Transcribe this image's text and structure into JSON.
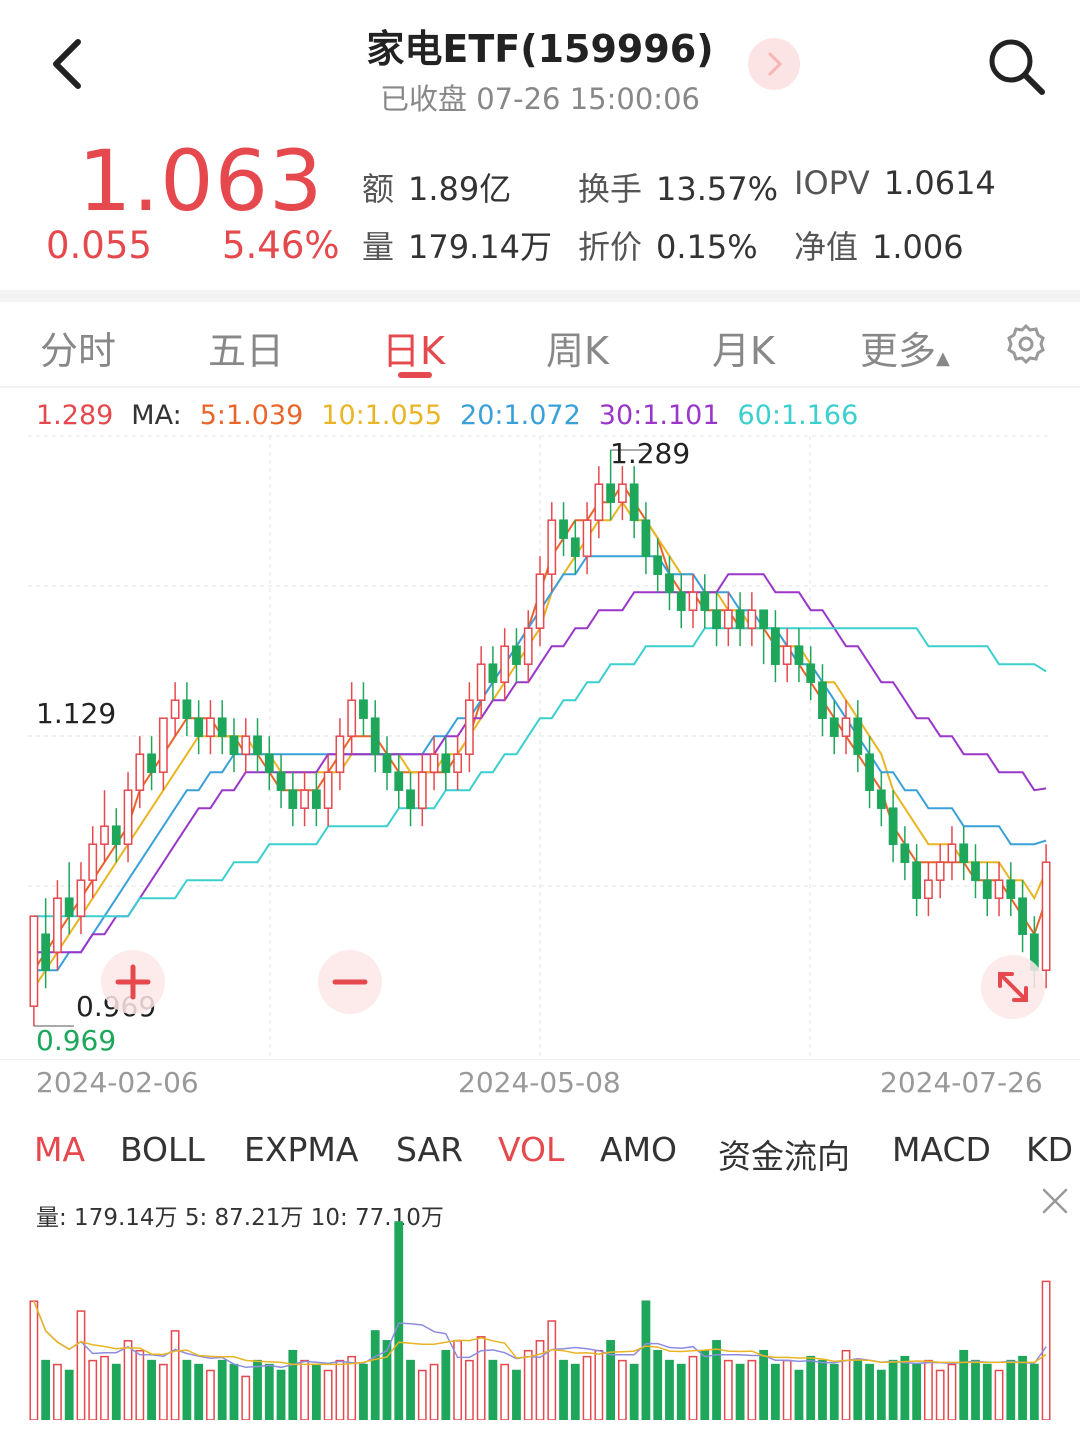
{
  "header": {
    "title": "家电ETF(159996)",
    "status": "已收盘 07-26 15:00:06",
    "back_icon": "chevron-left-icon",
    "next_icon": "chevron-right-icon",
    "search_icon": "search-icon"
  },
  "quote": {
    "price": "1.063",
    "change": "0.055",
    "change_pct": "5.46%",
    "stats": [
      {
        "label": "额",
        "value": "1.89亿"
      },
      {
        "label": "换手",
        "value": "13.57%"
      },
      {
        "label": "IOPV",
        "value": "1.0614"
      },
      {
        "label": "量",
        "value": "179.14万"
      },
      {
        "label": "折价",
        "value": "0.15%"
      },
      {
        "label": "净值",
        "value": "1.006"
      }
    ]
  },
  "tabs": [
    {
      "label": "分时",
      "active": false
    },
    {
      "label": "五日",
      "active": false
    },
    {
      "label": "日K",
      "active": true
    },
    {
      "label": "周K",
      "active": false
    },
    {
      "label": "月K",
      "active": false
    },
    {
      "label": "更多",
      "active": false
    }
  ],
  "settings_icon": "gear-icon",
  "ma_legend": {
    "price": "1.289",
    "ma_label": "MA:",
    "items": [
      {
        "text": "5:1.039",
        "color": "#e8662a"
      },
      {
        "text": "10:1.055",
        "color": "#e9b524"
      },
      {
        "text": "20:1.072",
        "color": "#3aa0da"
      },
      {
        "text": "30:1.101",
        "color": "#9a37c9"
      },
      {
        "text": "60:1.166",
        "color": "#3ccfd0"
      }
    ]
  },
  "chart_labels": {
    "high": "1.289",
    "mid": "1.129",
    "low_mark": "0.969",
    "low_axis": "0.969"
  },
  "chart_data": {
    "type": "candlestick",
    "ylim": [
      0.969,
      1.289
    ],
    "x_ticks": [
      "2024-02-06",
      "2024-05-08",
      "2024-07-26"
    ],
    "colors": {
      "up": "#e5484d",
      "down": "#1ea65a"
    },
    "candles": [
      [
        0.98,
        1.03,
        0.969,
        1.03
      ],
      [
        1.02,
        1.0,
        0.99,
        1.04
      ],
      [
        1.01,
        1.04,
        1.0,
        1.05
      ],
      [
        1.04,
        1.03,
        1.02,
        1.06
      ],
      [
        1.03,
        1.05,
        1.02,
        1.06
      ],
      [
        1.05,
        1.07,
        1.04,
        1.08
      ],
      [
        1.07,
        1.08,
        1.06,
        1.1
      ],
      [
        1.08,
        1.07,
        1.06,
        1.09
      ],
      [
        1.07,
        1.1,
        1.06,
        1.11
      ],
      [
        1.1,
        1.12,
        1.09,
        1.13
      ],
      [
        1.12,
        1.11,
        1.1,
        1.13
      ],
      [
        1.11,
        1.14,
        1.1,
        1.14
      ],
      [
        1.14,
        1.15,
        1.13,
        1.16
      ],
      [
        1.15,
        1.14,
        1.13,
        1.16
      ],
      [
        1.14,
        1.13,
        1.12,
        1.15
      ],
      [
        1.13,
        1.14,
        1.12,
        1.15
      ],
      [
        1.14,
        1.13,
        1.12,
        1.15
      ],
      [
        1.13,
        1.12,
        1.11,
        1.14
      ],
      [
        1.12,
        1.13,
        1.11,
        1.14
      ],
      [
        1.13,
        1.12,
        1.11,
        1.14
      ],
      [
        1.12,
        1.11,
        1.1,
        1.13
      ],
      [
        1.11,
        1.1,
        1.09,
        1.12
      ],
      [
        1.1,
        1.09,
        1.08,
        1.11
      ],
      [
        1.09,
        1.1,
        1.08,
        1.11
      ],
      [
        1.1,
        1.09,
        1.08,
        1.11
      ],
      [
        1.09,
        1.11,
        1.08,
        1.12
      ],
      [
        1.11,
        1.13,
        1.1,
        1.14
      ],
      [
        1.13,
        1.15,
        1.12,
        1.16
      ],
      [
        1.15,
        1.14,
        1.13,
        1.16
      ],
      [
        1.14,
        1.12,
        1.11,
        1.15
      ],
      [
        1.12,
        1.11,
        1.1,
        1.13
      ],
      [
        1.11,
        1.1,
        1.09,
        1.12
      ],
      [
        1.1,
        1.09,
        1.08,
        1.11
      ],
      [
        1.09,
        1.11,
        1.08,
        1.12
      ],
      [
        1.11,
        1.12,
        1.1,
        1.13
      ],
      [
        1.12,
        1.11,
        1.1,
        1.13
      ],
      [
        1.11,
        1.12,
        1.1,
        1.13
      ],
      [
        1.12,
        1.15,
        1.11,
        1.16
      ],
      [
        1.15,
        1.17,
        1.14,
        1.18
      ],
      [
        1.17,
        1.16,
        1.15,
        1.18
      ],
      [
        1.16,
        1.18,
        1.15,
        1.19
      ],
      [
        1.18,
        1.17,
        1.16,
        1.19
      ],
      [
        1.17,
        1.19,
        1.16,
        1.2
      ],
      [
        1.19,
        1.22,
        1.18,
        1.23
      ],
      [
        1.22,
        1.25,
        1.21,
        1.26
      ],
      [
        1.25,
        1.24,
        1.23,
        1.26
      ],
      [
        1.24,
        1.23,
        1.22,
        1.25
      ],
      [
        1.23,
        1.25,
        1.22,
        1.26
      ],
      [
        1.25,
        1.27,
        1.24,
        1.28
      ],
      [
        1.27,
        1.26,
        1.25,
        1.289
      ],
      [
        1.26,
        1.27,
        1.25,
        1.28
      ],
      [
        1.27,
        1.25,
        1.24,
        1.28
      ],
      [
        1.25,
        1.23,
        1.22,
        1.26
      ],
      [
        1.23,
        1.22,
        1.21,
        1.24
      ],
      [
        1.22,
        1.21,
        1.2,
        1.23
      ],
      [
        1.21,
        1.2,
        1.19,
        1.22
      ],
      [
        1.2,
        1.21,
        1.19,
        1.22
      ],
      [
        1.21,
        1.2,
        1.19,
        1.22
      ],
      [
        1.2,
        1.19,
        1.18,
        1.21
      ],
      [
        1.19,
        1.2,
        1.18,
        1.21
      ],
      [
        1.2,
        1.19,
        1.18,
        1.21
      ],
      [
        1.19,
        1.2,
        1.18,
        1.21
      ],
      [
        1.2,
        1.19,
        1.17,
        1.2
      ],
      [
        1.19,
        1.17,
        1.16,
        1.2
      ],
      [
        1.17,
        1.18,
        1.16,
        1.19
      ],
      [
        1.18,
        1.17,
        1.16,
        1.19
      ],
      [
        1.17,
        1.16,
        1.15,
        1.18
      ],
      [
        1.16,
        1.14,
        1.13,
        1.17
      ],
      [
        1.14,
        1.13,
        1.12,
        1.15
      ],
      [
        1.13,
        1.14,
        1.12,
        1.15
      ],
      [
        1.14,
        1.12,
        1.11,
        1.15
      ],
      [
        1.12,
        1.1,
        1.09,
        1.13
      ],
      [
        1.1,
        1.09,
        1.08,
        1.11
      ],
      [
        1.09,
        1.07,
        1.06,
        1.1
      ],
      [
        1.07,
        1.06,
        1.05,
        1.08
      ],
      [
        1.06,
        1.04,
        1.03,
        1.07
      ],
      [
        1.04,
        1.05,
        1.03,
        1.06
      ],
      [
        1.05,
        1.06,
        1.04,
        1.07
      ],
      [
        1.06,
        1.07,
        1.05,
        1.08
      ],
      [
        1.07,
        1.06,
        1.05,
        1.08
      ],
      [
        1.06,
        1.05,
        1.04,
        1.07
      ],
      [
        1.05,
        1.04,
        1.03,
        1.06
      ],
      [
        1.04,
        1.05,
        1.03,
        1.06
      ],
      [
        1.05,
        1.04,
        1.03,
        1.06
      ],
      [
        1.04,
        1.02,
        1.01,
        1.05
      ],
      [
        1.02,
        1.0,
        0.99,
        1.03
      ],
      [
        1.0,
        1.06,
        0.99,
        1.07
      ]
    ],
    "ma": {
      "ma5": {
        "color": "#e8662a",
        "values": [
          1.0,
          1.01,
          1.02,
          1.03,
          1.04,
          1.05,
          1.06,
          1.07,
          1.08,
          1.1,
          1.11,
          1.12,
          1.13,
          1.14,
          1.14,
          1.14,
          1.13,
          1.13,
          1.12,
          1.12,
          1.11,
          1.1,
          1.1,
          1.1,
          1.1,
          1.11,
          1.12,
          1.13,
          1.13,
          1.13,
          1.12,
          1.11,
          1.11,
          1.11,
          1.11,
          1.11,
          1.12,
          1.13,
          1.15,
          1.16,
          1.17,
          1.18,
          1.19,
          1.21,
          1.23,
          1.24,
          1.25,
          1.25,
          1.26,
          1.26,
          1.27,
          1.26,
          1.25,
          1.24,
          1.22,
          1.21,
          1.21,
          1.2,
          1.2,
          1.2,
          1.19,
          1.19,
          1.19,
          1.18,
          1.18,
          1.17,
          1.16,
          1.15,
          1.14,
          1.13,
          1.12,
          1.11,
          1.1,
          1.08,
          1.07,
          1.06,
          1.06,
          1.06,
          1.06,
          1.06,
          1.05,
          1.05,
          1.05,
          1.04,
          1.03,
          1.02,
          1.039
        ]
      },
      "ma10": {
        "color": "#e9b524",
        "values": [
          0.99,
          1.0,
          1.01,
          1.02,
          1.03,
          1.04,
          1.05,
          1.06,
          1.07,
          1.08,
          1.09,
          1.1,
          1.11,
          1.12,
          1.13,
          1.13,
          1.13,
          1.13,
          1.13,
          1.12,
          1.12,
          1.11,
          1.11,
          1.11,
          1.11,
          1.11,
          1.11,
          1.12,
          1.12,
          1.12,
          1.12,
          1.12,
          1.11,
          1.11,
          1.11,
          1.12,
          1.12,
          1.13,
          1.14,
          1.15,
          1.16,
          1.17,
          1.18,
          1.19,
          1.21,
          1.22,
          1.23,
          1.24,
          1.25,
          1.25,
          1.26,
          1.25,
          1.25,
          1.24,
          1.23,
          1.22,
          1.22,
          1.21,
          1.21,
          1.2,
          1.2,
          1.19,
          1.19,
          1.19,
          1.18,
          1.18,
          1.17,
          1.16,
          1.16,
          1.15,
          1.14,
          1.13,
          1.12,
          1.1,
          1.09,
          1.08,
          1.07,
          1.07,
          1.07,
          1.06,
          1.06,
          1.06,
          1.06,
          1.05,
          1.05,
          1.04,
          1.055
        ]
      },
      "ma20": {
        "color": "#3aa0da",
        "values": [
          1.0,
          1.0,
          1.0,
          1.01,
          1.01,
          1.02,
          1.03,
          1.04,
          1.05,
          1.06,
          1.07,
          1.08,
          1.09,
          1.1,
          1.1,
          1.11,
          1.11,
          1.12,
          1.12,
          1.12,
          1.12,
          1.12,
          1.12,
          1.12,
          1.12,
          1.12,
          1.12,
          1.12,
          1.12,
          1.12,
          1.12,
          1.12,
          1.12,
          1.12,
          1.13,
          1.13,
          1.14,
          1.14,
          1.15,
          1.16,
          1.17,
          1.18,
          1.19,
          1.2,
          1.21,
          1.22,
          1.22,
          1.23,
          1.23,
          1.23,
          1.23,
          1.23,
          1.23,
          1.23,
          1.22,
          1.22,
          1.22,
          1.21,
          1.21,
          1.21,
          1.2,
          1.2,
          1.19,
          1.19,
          1.18,
          1.17,
          1.17,
          1.16,
          1.15,
          1.14,
          1.13,
          1.12,
          1.11,
          1.11,
          1.1,
          1.1,
          1.09,
          1.09,
          1.09,
          1.08,
          1.08,
          1.08,
          1.08,
          1.07,
          1.07,
          1.07,
          1.072
        ]
      },
      "ma30": {
        "color": "#9a37c9",
        "values": [
          1.01,
          1.01,
          1.01,
          1.01,
          1.01,
          1.02,
          1.02,
          1.03,
          1.03,
          1.04,
          1.05,
          1.06,
          1.07,
          1.08,
          1.09,
          1.09,
          1.1,
          1.1,
          1.11,
          1.11,
          1.11,
          1.11,
          1.11,
          1.11,
          1.11,
          1.12,
          1.12,
          1.12,
          1.12,
          1.12,
          1.12,
          1.12,
          1.12,
          1.12,
          1.12,
          1.13,
          1.13,
          1.14,
          1.14,
          1.15,
          1.15,
          1.16,
          1.16,
          1.17,
          1.18,
          1.18,
          1.19,
          1.19,
          1.2,
          1.2,
          1.2,
          1.21,
          1.21,
          1.21,
          1.21,
          1.21,
          1.21,
          1.21,
          1.21,
          1.22,
          1.22,
          1.22,
          1.22,
          1.21,
          1.21,
          1.21,
          1.2,
          1.2,
          1.19,
          1.18,
          1.18,
          1.17,
          1.16,
          1.16,
          1.15,
          1.14,
          1.14,
          1.13,
          1.13,
          1.12,
          1.12,
          1.12,
          1.11,
          1.11,
          1.11,
          1.1,
          1.101
        ]
      },
      "ma60": {
        "color": "#3ccfd0",
        "values": [
          1.03,
          1.03,
          1.03,
          1.03,
          1.03,
          1.03,
          1.03,
          1.03,
          1.03,
          1.04,
          1.04,
          1.04,
          1.04,
          1.05,
          1.05,
          1.05,
          1.05,
          1.06,
          1.06,
          1.06,
          1.07,
          1.07,
          1.07,
          1.07,
          1.07,
          1.08,
          1.08,
          1.08,
          1.08,
          1.08,
          1.08,
          1.09,
          1.09,
          1.09,
          1.09,
          1.1,
          1.1,
          1.1,
          1.11,
          1.11,
          1.12,
          1.12,
          1.13,
          1.14,
          1.14,
          1.15,
          1.15,
          1.16,
          1.16,
          1.17,
          1.17,
          1.17,
          1.18,
          1.18,
          1.18,
          1.18,
          1.18,
          1.19,
          1.19,
          1.19,
          1.19,
          1.19,
          1.19,
          1.19,
          1.19,
          1.19,
          1.19,
          1.19,
          1.19,
          1.19,
          1.19,
          1.19,
          1.19,
          1.19,
          1.19,
          1.19,
          1.18,
          1.18,
          1.18,
          1.18,
          1.18,
          1.18,
          1.17,
          1.17,
          1.17,
          1.17,
          1.166
        ]
      }
    },
    "volume": [
      60,
      30,
      28,
      25,
      55,
      30,
      32,
      28,
      40,
      35,
      30,
      28,
      45,
      30,
      28,
      25,
      30,
      28,
      22,
      30,
      28,
      25,
      35,
      30,
      28,
      25,
      30,
      32,
      28,
      45,
      40,
      100,
      30,
      25,
      28,
      35,
      40,
      30,
      42,
      30,
      28,
      25,
      35,
      40,
      50,
      30,
      28,
      32,
      35,
      40,
      30,
      28,
      60,
      35,
      30,
      28,
      32,
      35,
      40,
      30,
      28,
      30,
      35,
      28,
      30,
      25,
      32,
      30,
      28,
      35,
      30,
      28,
      25,
      30,
      32,
      28,
      30,
      25,
      28,
      35,
      30,
      28,
      25,
      30,
      32,
      28,
      70
    ]
  },
  "controls": {
    "zoom_in": "plus-icon",
    "zoom_out": "minus-icon",
    "fullscreen": "expand-icon"
  },
  "indicators": [
    {
      "label": "MA",
      "active": true
    },
    {
      "label": "BOLL",
      "active": false
    },
    {
      "label": "EXPMA",
      "active": false
    },
    {
      "label": "SAR",
      "active": false
    },
    {
      "label": "VOL",
      "active": true
    },
    {
      "label": "AMO",
      "active": false
    },
    {
      "label": "资金流向",
      "active": false
    },
    {
      "label": "MACD",
      "active": false
    },
    {
      "label": "KD",
      "active": false
    }
  ],
  "vol_legend": "量: 179.14万  5: 87.21万  10: 77.10万",
  "close_icon": "close-icon"
}
